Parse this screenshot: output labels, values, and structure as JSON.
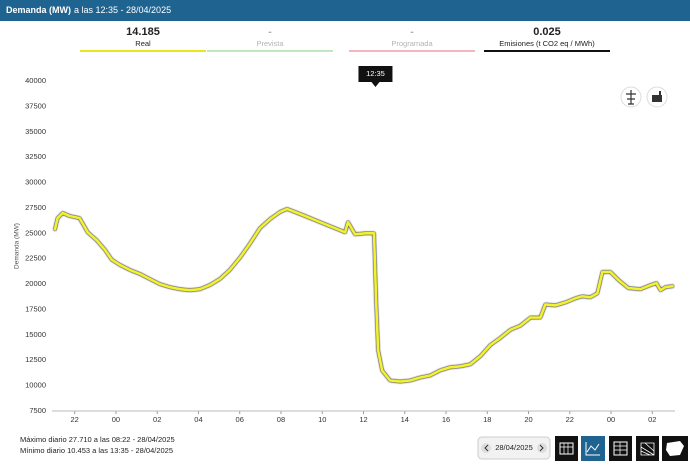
{
  "header": {
    "title": "Demanda (MW)",
    "subtitle": "a las 12:35 - 28/04/2025"
  },
  "kpis": [
    {
      "value": "14.185",
      "label": "Real",
      "color": "#e8e61c",
      "faded": false
    },
    {
      "value": "-",
      "label": "Prevista",
      "color": "#bfe8c0",
      "faded": true
    },
    {
      "value": "-",
      "label": "Programada",
      "color": "#f2b8bd",
      "faded": true
    },
    {
      "value": "0.025",
      "label": "Emisiones (t CO2 eq / MWh)",
      "color": "#111111",
      "faded": false
    }
  ],
  "chart_data": {
    "type": "line",
    "y_label": "Demanda (MW)",
    "annotation": "12:35",
    "color": "#f2f22e",
    "grid": false,
    "x": [
      21.03,
      21.17,
      21.42,
      21.76,
      22.24,
      22.63,
      23.07,
      23.46,
      23.8,
      24.18,
      24.67,
      25.16,
      25.64,
      26.13,
      26.61,
      27.1,
      27.58,
      28.07,
      28.55,
      29.04,
      29.52,
      30.01,
      30.5,
      30.98,
      31.47,
      31.95,
      32.29,
      32.68,
      33.17,
      33.65,
      34.14,
      34.62,
      35.11,
      35.25,
      35.59,
      36.08,
      36.51,
      36.61,
      36.71,
      36.9,
      37.29,
      37.78,
      38.26,
      38.75,
      39.23,
      39.72,
      40.2,
      40.69,
      41.17,
      41.66,
      42.15,
      42.63,
      43.12,
      43.6,
      44.09,
      44.57,
      44.82,
      45.3,
      45.79,
      46.27,
      46.61,
      47.0,
      47.34,
      47.58,
      47.97,
      48.36,
      48.84,
      49.43,
      49.91,
      50.2,
      50.4,
      50.64,
      51.03
    ],
    "values": [
      25300,
      26500,
      27000,
      26700,
      26500,
      25100,
      24300,
      23400,
      22400,
      21900,
      21400,
      21000,
      20500,
      20000,
      19700,
      19500,
      19400,
      19500,
      19900,
      20500,
      21400,
      22600,
      24000,
      25500,
      26400,
      27100,
      27400,
      27100,
      26700,
      26300,
      25900,
      25500,
      25100,
      26100,
      24900,
      25000,
      25000,
      18400,
      13500,
      11500,
      10500,
      10400,
      10500,
      10800,
      11000,
      11500,
      11800,
      11900,
      12100,
      12900,
      14000,
      14700,
      15500,
      15900,
      16700,
      16700,
      18000,
      17900,
      18200,
      18600,
      18800,
      18700,
      19100,
      21200,
      21200,
      20400,
      19600,
      19500,
      19900,
      20100,
      19400,
      19700,
      19800
    ],
    "xlim": [
      20.9,
      51.1
    ],
    "xticks": [
      {
        "value": 22,
        "label": "22"
      },
      {
        "value": 24,
        "label": "00"
      },
      {
        "value": 26,
        "label": "02"
      },
      {
        "value": 28,
        "label": "04"
      },
      {
        "value": 30,
        "label": "06"
      },
      {
        "value": 32,
        "label": "08"
      },
      {
        "value": 34,
        "label": "10"
      },
      {
        "value": 36,
        "label": "12"
      },
      {
        "value": 38,
        "label": "14"
      },
      {
        "value": 40,
        "label": "16"
      },
      {
        "value": 42,
        "label": "18"
      },
      {
        "value": 44,
        "label": "20"
      },
      {
        "value": 46,
        "label": "22"
      },
      {
        "value": 48,
        "label": "00"
      },
      {
        "value": 50,
        "label": "02"
      }
    ],
    "ylim": [
      7500,
      40000
    ],
    "yticks": [
      7500,
      10000,
      12500,
      15000,
      17500,
      20000,
      22500,
      25000,
      27500,
      30000,
      32500,
      35000,
      37500,
      40000
    ],
    "annotation_x": 36.58
  },
  "footer": {
    "max": "Máximo diario 27.710 a las 08:22 - 28/04/2025",
    "min": "Mínimo diario 10.453 a las 13:35 - 28/04/2025"
  },
  "date_picker": {
    "date": "28/04/2025"
  }
}
